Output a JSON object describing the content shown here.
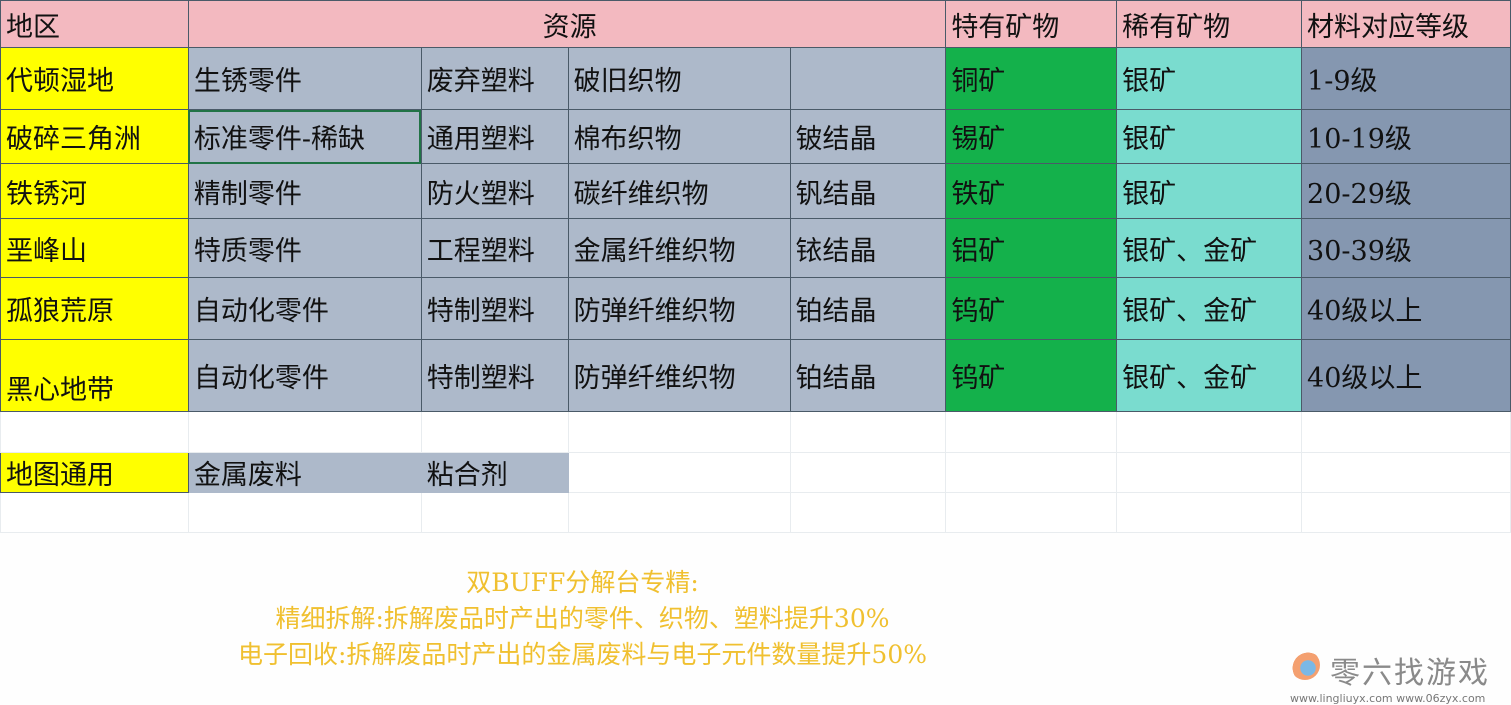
{
  "header": {
    "region": "地区",
    "resources": "资源",
    "special": "特有矿物",
    "rare": "稀有矿物",
    "level": "材料对应等级"
  },
  "rows": [
    {
      "region": "代顿湿地",
      "r1": "生锈零件",
      "r2": "废弃塑料",
      "r3": "破旧织物",
      "r4": "",
      "special": "铜矿",
      "rare": "银矿",
      "level": "1-9级"
    },
    {
      "region": "破碎三角洲",
      "r1": "标准零件-稀缺",
      "r2": "通用塑料",
      "r3": "棉布织物",
      "r4": "铍结晶",
      "special": "锡矿",
      "rare": "银矿",
      "level": "10-19级"
    },
    {
      "region": "铁锈河",
      "r1": "精制零件",
      "r2": "防火塑料",
      "r3": "碳纤维织物",
      "r4": "钒结晶",
      "special": "铁矿",
      "rare": "银矿",
      "level": "20-29级"
    },
    {
      "region": "垩峰山",
      "r1": "特质零件",
      "r2": "工程塑料",
      "r3": "金属纤维织物",
      "r4": "铱结晶",
      "special": "铝矿",
      "rare": "银矿、金矿",
      "level": "30-39级"
    },
    {
      "region": "孤狼荒原",
      "r1": "自动化零件",
      "r2": "特制塑料",
      "r3": "防弹纤维织物",
      "r4": "铂结晶",
      "special": "钨矿",
      "rare": "银矿、金矿",
      "level": "40级以上"
    },
    {
      "region": "黑心地带",
      "r1": "自动化零件",
      "r2": "特制塑料",
      "r3": "防弹纤维织物",
      "r4": "铂结晶",
      "special": "钨矿",
      "rare": "银矿、金矿",
      "level": "40级以上"
    }
  ],
  "common": {
    "label": "地图通用",
    "items": [
      "金属废料",
      "粘合剂"
    ]
  },
  "notes": [
    "双BUFF分解台专精:",
    "精细拆解:拆解废品时产出的零件、织物、塑料提升30%",
    "电子回收:拆解废品时产出的金属废料与电子元件数量提升50%"
  ],
  "watermark": {
    "name": "零六找游戏",
    "urls": "www.lingliuyx.com   www.06zyx.com"
  },
  "colors": {
    "header": "#f3b9c0",
    "region": "#ffff00",
    "resource": "#adb9ca",
    "special": "#14b14b",
    "rare": "#7adccf",
    "level": "#8597b0",
    "notes": "#f0c030"
  }
}
